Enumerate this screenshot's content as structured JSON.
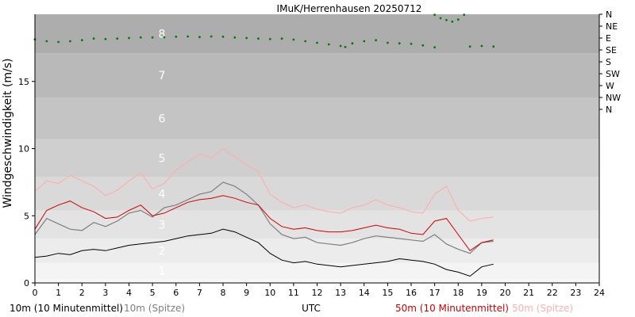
{
  "chart_data": {
    "type": "line",
    "title": "IMuK/Herrenhausen 20250712",
    "xlabel": "UTC",
    "ylabel": "Windgeschwindigkeit (m/s)",
    "xlim": [
      0,
      24
    ],
    "ylim": [
      0,
      20
    ],
    "x_ticks": [
      0,
      1,
      2,
      3,
      4,
      5,
      6,
      7,
      8,
      9,
      10,
      11,
      12,
      13,
      14,
      15,
      16,
      17,
      18,
      19,
      20,
      21,
      22,
      23,
      24
    ],
    "y_ticks": [
      0,
      5,
      10,
      15
    ],
    "beaufort_bands": [
      {
        "label": "1",
        "from": 0.3,
        "to": 1.5,
        "color": "#f4f4f4"
      },
      {
        "label": "2",
        "from": 1.5,
        "to": 3.3,
        "color": "#ececec"
      },
      {
        "label": "3",
        "from": 3.3,
        "to": 5.4,
        "color": "#e3e3e3"
      },
      {
        "label": "4",
        "from": 5.4,
        "to": 7.9,
        "color": "#d9d9d9"
      },
      {
        "label": "5",
        "from": 7.9,
        "to": 10.7,
        "color": "#cfcfcf"
      },
      {
        "label": "6",
        "from": 10.7,
        "to": 13.8,
        "color": "#c4c4c4"
      },
      {
        "label": "7",
        "from": 13.8,
        "to": 17.1,
        "color": "#b9b9b9"
      },
      {
        "label": "8",
        "from": 17.1,
        "to": 20.0,
        "color": "#adadad"
      }
    ],
    "direction_axis": {
      "labels": [
        "N",
        "NE",
        "E",
        "SE",
        "S",
        "SW",
        "W",
        "NW",
        "N"
      ],
      "degrees": [
        360,
        315,
        270,
        225,
        180,
        135,
        90,
        45,
        0
      ]
    },
    "series": [
      {
        "name": "10m (10 Minutenmittel)",
        "color": "#000000",
        "x": [
          0,
          0.5,
          1,
          1.5,
          2,
          2.5,
          3,
          3.5,
          4,
          4.5,
          5,
          5.5,
          6,
          6.5,
          7,
          7.5,
          8,
          8.5,
          9,
          9.5,
          10,
          10.5,
          11,
          11.5,
          12,
          12.5,
          13,
          13.5,
          14,
          14.5,
          15,
          15.5,
          16,
          16.5,
          17,
          17.5,
          18,
          18.5,
          19,
          19.5
        ],
        "values": [
          1.9,
          2.0,
          2.2,
          2.1,
          2.4,
          2.5,
          2.4,
          2.6,
          2.8,
          2.9,
          3.0,
          3.1,
          3.3,
          3.5,
          3.6,
          3.7,
          4.0,
          3.8,
          3.4,
          3.0,
          2.2,
          1.7,
          1.5,
          1.6,
          1.4,
          1.3,
          1.2,
          1.3,
          1.4,
          1.5,
          1.6,
          1.8,
          1.7,
          1.6,
          1.4,
          1.0,
          0.8,
          0.5,
          1.2,
          1.4
        ]
      },
      {
        "name": "10m (Spitze)",
        "color": "#7f7f7f",
        "x": [
          0,
          0.5,
          1,
          1.5,
          2,
          2.5,
          3,
          3.5,
          4,
          4.5,
          5,
          5.5,
          6,
          6.5,
          7,
          7.5,
          8,
          8.5,
          9,
          9.5,
          10,
          10.5,
          11,
          11.5,
          12,
          12.5,
          13,
          13.5,
          14,
          14.5,
          15,
          15.5,
          16,
          16.5,
          17,
          17.5,
          18,
          18.5,
          19,
          19.5
        ],
        "values": [
          3.6,
          4.8,
          4.4,
          4.0,
          3.9,
          4.5,
          4.2,
          4.6,
          5.2,
          5.4,
          4.9,
          5.6,
          5.8,
          6.2,
          6.6,
          6.8,
          7.5,
          7.2,
          6.6,
          5.8,
          4.4,
          3.6,
          3.3,
          3.4,
          3.0,
          2.9,
          2.8,
          3.0,
          3.3,
          3.5,
          3.4,
          3.3,
          3.2,
          3.1,
          3.6,
          2.9,
          2.5,
          2.2,
          3.0,
          3.1
        ]
      },
      {
        "name": "50m (10 Minutenmittel)",
        "color": "#d00000",
        "x": [
          0,
          0.5,
          1,
          1.5,
          2,
          2.5,
          3,
          3.5,
          4,
          4.5,
          5,
          5.5,
          6,
          6.5,
          7,
          7.5,
          8,
          8.5,
          9,
          9.5,
          10,
          10.5,
          11,
          11.5,
          12,
          12.5,
          13,
          13.5,
          14,
          14.5,
          15,
          15.5,
          16,
          16.5,
          17,
          17.5,
          18,
          18.5,
          19,
          19.5
        ],
        "values": [
          4.0,
          5.4,
          5.8,
          6.1,
          5.6,
          5.3,
          4.8,
          4.9,
          5.4,
          5.8,
          5.0,
          5.2,
          5.6,
          6.0,
          6.2,
          6.3,
          6.5,
          6.3,
          6.0,
          5.8,
          4.8,
          4.2,
          4.0,
          4.1,
          3.9,
          3.8,
          3.8,
          3.9,
          4.1,
          4.3,
          4.1,
          4.0,
          3.7,
          3.6,
          4.6,
          4.8,
          3.6,
          2.4,
          3.0,
          3.2
        ]
      },
      {
        "name": "50m (Spitze)",
        "color": "#ffb0b0",
        "x": [
          0,
          0.5,
          1,
          1.5,
          2,
          2.5,
          3,
          3.5,
          4,
          4.5,
          5,
          5.5,
          6,
          6.5,
          7,
          7.5,
          8,
          8.5,
          9,
          9.5,
          10,
          10.5,
          11,
          11.5,
          12,
          12.5,
          13,
          13.5,
          14,
          14.5,
          15,
          15.5,
          16,
          16.5,
          17,
          17.5,
          18,
          18.5,
          19,
          19.5
        ],
        "values": [
          6.8,
          7.6,
          7.4,
          8.0,
          7.6,
          7.2,
          6.5,
          6.9,
          7.6,
          8.2,
          7.0,
          7.4,
          8.4,
          9.0,
          9.6,
          9.3,
          10.0,
          9.4,
          8.8,
          8.3,
          6.6,
          6.0,
          5.6,
          5.8,
          5.5,
          5.3,
          5.2,
          5.6,
          5.8,
          6.2,
          5.8,
          5.6,
          5.3,
          5.2,
          6.6,
          7.2,
          5.4,
          4.6,
          4.8,
          4.9
        ]
      },
      {
        "name": "Windrichtung",
        "color": "#008000",
        "axis": "direction",
        "style": "dots",
        "x": [
          0,
          0.5,
          1,
          1.5,
          2,
          2.5,
          3,
          3.5,
          4,
          4.5,
          5,
          5.5,
          6,
          6.5,
          7,
          7.5,
          8,
          8.5,
          9,
          9.5,
          10,
          10.5,
          11,
          11.5,
          12,
          12.5,
          13,
          13.2,
          13.5,
          14,
          14.5,
          15,
          15.5,
          16,
          16.5,
          17,
          17.5,
          18,
          18.5,
          19,
          19.5
        ],
        "values": [
          265,
          258,
          255,
          258,
          262,
          268,
          266,
          268,
          270,
          272,
          272,
          273,
          275,
          276,
          274,
          276,
          275,
          272,
          270,
          268,
          266,
          268,
          264,
          258,
          252,
          246,
          240,
          236,
          250,
          258,
          262,
          252,
          250,
          248,
          242,
          235,
          null,
          null,
          238,
          240,
          238
        ]
      },
      {
        "name": "Windrichtung",
        "color": "#008000",
        "axis": "direction",
        "style": "dots",
        "x": [
          17.0,
          17.25,
          17.5,
          17.75,
          18.0,
          18.25
        ],
        "values": [
          358,
          345,
          338,
          332,
          340,
          358
        ]
      }
    ]
  }
}
